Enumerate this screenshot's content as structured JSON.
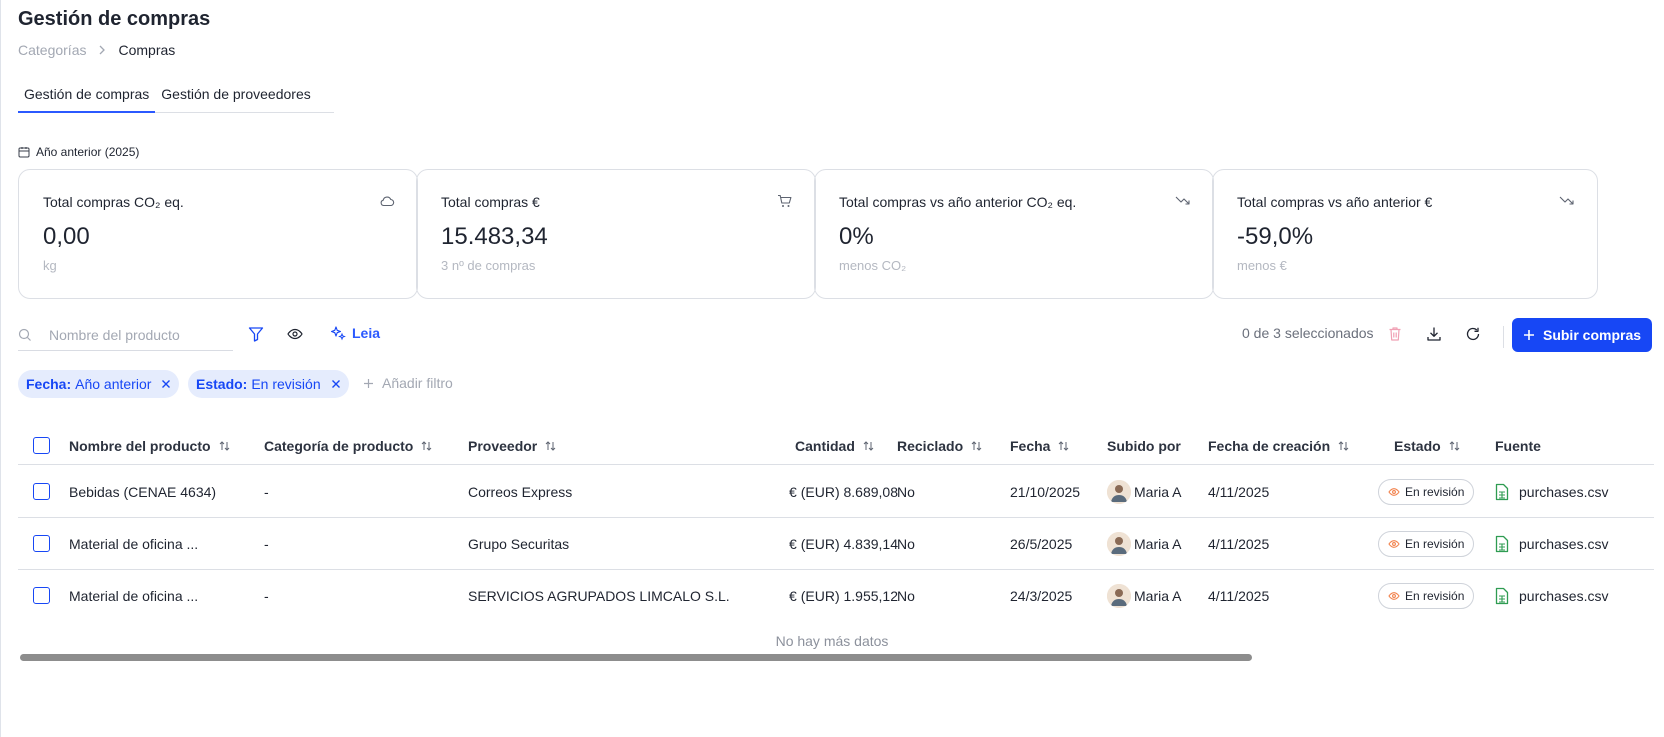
{
  "page": {
    "title": "Gestión de compras"
  },
  "breadcrumb": {
    "items": [
      "Categorías",
      "Compras"
    ]
  },
  "tabs": [
    {
      "label": "Gestión de compras",
      "active": true
    },
    {
      "label": "Gestión de proveedores",
      "active": false
    }
  ],
  "period": {
    "label": "Año anterior (2025)",
    "icon": "calendar-icon"
  },
  "cards": [
    {
      "title": "Total compras CO₂ eq.",
      "value": "0,00",
      "sub": "kg",
      "icon": "cloud-icon"
    },
    {
      "title": "Total compras €",
      "value": "15.483,34",
      "sub": "3 nº de compras",
      "icon": "shopping-cart-icon"
    },
    {
      "title": "Total compras vs año anterior CO₂ eq.",
      "value": "0%",
      "sub": "menos CO₂",
      "icon": "trending-down-icon"
    },
    {
      "title": "Total compras vs año anterior €",
      "value": "-59,0%",
      "sub": "menos €",
      "icon": "trending-down-icon"
    }
  ],
  "toolbar": {
    "search_placeholder": "Nombre del producto",
    "search_value": "",
    "leia_label": "Leia",
    "selected_count": "0 de 3 seleccionados",
    "upload_label": "Subir compras"
  },
  "filters": [
    {
      "key": "Fecha:",
      "value": "Año anterior"
    },
    {
      "key": "Estado:",
      "value": "En revisión"
    }
  ],
  "add_filter_label": "Añadir filtro",
  "table": {
    "columns": [
      "Nombre del producto",
      "Categoría de producto",
      "Proveedor",
      "Cantidad",
      "Reciclado",
      "Fecha",
      "Subido por",
      "Fecha de creación",
      "Estado",
      "Fuente"
    ],
    "rows": [
      {
        "name": "Bebidas (CENAE 4634)",
        "category": "-",
        "supplier": "Correos Express",
        "amount": "€ (EUR) 8.689,08",
        "recycled": "No",
        "date": "21/10/2025",
        "uploader": "Maria A",
        "created": "4/11/2025",
        "status": "En revisión",
        "source": "purchases.csv"
      },
      {
        "name": "Material de oficina ...",
        "category": "-",
        "supplier": "Grupo Securitas",
        "amount": "€ (EUR) 4.839,14",
        "recycled": "No",
        "date": "26/5/2025",
        "uploader": "Maria A",
        "created": "4/11/2025",
        "status": "En revisión",
        "source": "purchases.csv"
      },
      {
        "name": "Material de oficina ...",
        "category": "-",
        "supplier": "SERVICIOS AGRUPADOS LIMCALO S.L.",
        "amount": "€ (EUR) 1.955,12",
        "recycled": "No",
        "date": "24/3/2025",
        "uploader": "Maria A",
        "created": "4/11/2025",
        "status": "En revisión",
        "source": "purchases.csv"
      }
    ],
    "empty_footer": "No hay más datos"
  },
  "colors": {
    "accent": "#1747f5",
    "chip_bg": "#e5ecfd",
    "delete": "#f0a0b4",
    "eye_orange": "#f2834e",
    "csv_green": "#2f9c52"
  }
}
